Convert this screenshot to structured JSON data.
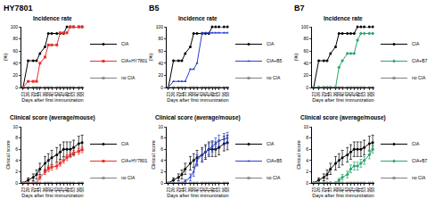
{
  "chart_data": [
    {
      "type": "line",
      "title": "Incidence rate",
      "annotations": [
        "HY7801"
      ],
      "x_label": "Days after first immunization",
      "y_label": "(%)",
      "x": [
        23,
        26,
        29,
        31,
        33,
        36,
        38,
        40,
        43,
        45,
        47,
        49,
        51,
        53,
        56,
        58
      ],
      "xlim": [
        22,
        59
      ],
      "xticks": [
        23,
        26,
        29,
        31,
        33,
        36,
        38,
        40,
        43,
        45,
        47,
        49,
        51,
        53,
        56,
        58
      ],
      "ylim": [
        0,
        100
      ],
      "yticks": [
        0,
        20,
        40,
        60,
        80,
        100
      ],
      "grid": false,
      "series": [
        {
          "name": "CIA",
          "color": "#000000",
          "marker": "circle",
          "values": [
            0,
            44,
            44,
            44,
            56,
            67,
            89,
            89,
            89,
            89,
            89,
            100,
            100,
            100,
            100,
            100
          ]
        },
        {
          "name": "CIA+HY7801",
          "color": "#e8302a",
          "marker": "square",
          "values": [
            0,
            10,
            10,
            10,
            40,
            50,
            70,
            70,
            70,
            90,
            90,
            90,
            100,
            100,
            100,
            100
          ]
        },
        {
          "name": "no CIA",
          "color": "#808080",
          "marker": "x",
          "values": [
            0,
            0,
            0,
            0,
            0,
            0,
            0,
            0,
            0,
            0,
            0,
            0,
            0,
            0,
            0,
            0
          ]
        }
      ]
    },
    {
      "type": "line",
      "title": "Clinical score (average/mouse)",
      "x_label": "Days after first immunization",
      "y_label": "Clinical score",
      "x": [
        23,
        26,
        29,
        31,
        33,
        36,
        38,
        40,
        43,
        45,
        47,
        49,
        51,
        53,
        56,
        58
      ],
      "xlim": [
        22,
        59
      ],
      "xticks": [
        23,
        26,
        29,
        31,
        33,
        36,
        38,
        40,
        43,
        45,
        47,
        49,
        51,
        53,
        56,
        58
      ],
      "ylim": [
        0,
        10
      ],
      "yticks": [
        0,
        2,
        4,
        6,
        8,
        10
      ],
      "grid": false,
      "series": [
        {
          "name": "CIA",
          "color": "#000000",
          "marker": "circle",
          "values": [
            0,
            0.5,
            1,
            1.5,
            2.5,
            3.5,
            4,
            4.5,
            5,
            5.5,
            6,
            6,
            6,
            6.3,
            7,
            7.2
          ],
          "errors": [
            0,
            0.4,
            0.6,
            0.8,
            1,
            1.2,
            1.2,
            1.3,
            1.3,
            1.3,
            1.3,
            1.3,
            1.3,
            1.3,
            1.3,
            1.3
          ]
        },
        {
          "name": "CIA+HY7801",
          "color": "#e8302a",
          "marker": "square",
          "values": [
            0,
            0,
            0,
            0,
            1,
            2,
            2.5,
            2.8,
            3,
            3.5,
            4,
            4.5,
            5,
            5.3,
            5.6,
            5.9
          ],
          "errors": [
            0,
            0,
            0,
            0,
            0.4,
            0.5,
            0.5,
            0.5,
            0.5,
            0.5,
            0.5,
            0.5,
            0.5,
            0.5,
            0.5,
            0.5
          ]
        },
        {
          "name": "no CIA",
          "color": "#808080",
          "marker": "x",
          "values": [
            0,
            0,
            0,
            0,
            0,
            0,
            0,
            0,
            0,
            0,
            0,
            0,
            0,
            0,
            0,
            0
          ],
          "errors": [
            0,
            0,
            0,
            0,
            0,
            0,
            0,
            0,
            0,
            0,
            0,
            0,
            0,
            0,
            0,
            0
          ]
        }
      ]
    },
    {
      "type": "line",
      "title": "Incidence rate",
      "annotations": [
        "B5"
      ],
      "x_label": "Days after first immunization",
      "y_label": "(%)",
      "x": [
        23,
        26,
        29,
        31,
        33,
        36,
        38,
        40,
        43,
        45,
        47,
        49,
        51,
        53,
        56,
        58
      ],
      "xlim": [
        22,
        59
      ],
      "xticks": [
        23,
        26,
        29,
        31,
        33,
        36,
        38,
        40,
        43,
        45,
        47,
        49,
        51,
        53,
        56,
        58
      ],
      "ylim": [
        0,
        100
      ],
      "yticks": [
        0,
        20,
        40,
        60,
        80,
        100
      ],
      "grid": false,
      "series": [
        {
          "name": "CIA",
          "color": "#000000",
          "marker": "circle",
          "values": [
            0,
            44,
            44,
            44,
            56,
            67,
            89,
            89,
            89,
            89,
            89,
            100,
            100,
            100,
            100,
            100
          ]
        },
        {
          "name": "CIA+B5",
          "color": "#2a3fd6",
          "marker": "triangle-up",
          "values": [
            0,
            10,
            10,
            10,
            10,
            30,
            30,
            40,
            90,
            90,
            90,
            90,
            90,
            90,
            90,
            90
          ]
        },
        {
          "name": "no CIA",
          "color": "#808080",
          "marker": "x",
          "values": [
            0,
            0,
            0,
            0,
            0,
            0,
            0,
            0,
            0,
            0,
            0,
            0,
            0,
            0,
            0,
            0
          ]
        }
      ]
    },
    {
      "type": "line",
      "title": "Clinical score (average/mouse)",
      "x_label": "Days after first immunization",
      "y_label": "Clinical score",
      "x": [
        23,
        26,
        29,
        31,
        33,
        36,
        38,
        40,
        43,
        45,
        47,
        49,
        51,
        53,
        56,
        58
      ],
      "xlim": [
        22,
        59
      ],
      "xticks": [
        23,
        26,
        29,
        31,
        33,
        36,
        38,
        40,
        43,
        45,
        47,
        49,
        51,
        53,
        56,
        58
      ],
      "ylim": [
        0,
        10
      ],
      "yticks": [
        0,
        2,
        4,
        6,
        8,
        10
      ],
      "grid": false,
      "series": [
        {
          "name": "CIA",
          "color": "#000000",
          "marker": "circle",
          "values": [
            0,
            0.5,
            1,
            1.5,
            2.5,
            3.5,
            4,
            4.5,
            5,
            5.5,
            6,
            6,
            6,
            6.3,
            7,
            7.2
          ],
          "errors": [
            0,
            0.4,
            0.6,
            0.8,
            1,
            1.2,
            1.2,
            1.3,
            1.3,
            1.3,
            1.3,
            1.3,
            1.3,
            1.3,
            1.3,
            1.3
          ]
        },
        {
          "name": "CIA+B5",
          "color": "#2a3fd6",
          "marker": "triangle-up",
          "values": [
            0,
            0,
            0,
            0,
            0.3,
            1,
            2,
            4,
            5,
            5.5,
            6,
            6.5,
            7,
            7.5,
            7.8,
            8
          ],
          "errors": [
            0,
            0,
            0,
            0,
            0.3,
            0.6,
            0.8,
            1,
            1,
            1,
            1,
            1,
            1,
            1,
            1,
            1
          ]
        },
        {
          "name": "no CIA",
          "color": "#808080",
          "marker": "x",
          "values": [
            0,
            0,
            0,
            0,
            0,
            0,
            0,
            0,
            0,
            0,
            0,
            0,
            0,
            0,
            0,
            0
          ],
          "errors": [
            0,
            0,
            0,
            0,
            0,
            0,
            0,
            0,
            0,
            0,
            0,
            0,
            0,
            0,
            0,
            0
          ]
        }
      ]
    },
    {
      "type": "line",
      "title": "Incidence rate",
      "annotations": [
        "B7"
      ],
      "x_label": "Days after first immunization",
      "y_label": "(%)",
      "x": [
        23,
        26,
        29,
        31,
        33,
        36,
        38,
        40,
        43,
        45,
        47,
        49,
        51,
        53,
        56,
        58
      ],
      "xlim": [
        22,
        59
      ],
      "xticks": [
        23,
        26,
        29,
        31,
        33,
        36,
        38,
        40,
        43,
        45,
        47,
        49,
        51,
        53,
        56,
        58
      ],
      "ylim": [
        0,
        100
      ],
      "yticks": [
        0,
        20,
        40,
        60,
        80,
        100
      ],
      "grid": false,
      "series": [
        {
          "name": "CIA",
          "color": "#000000",
          "marker": "circle",
          "values": [
            0,
            44,
            44,
            44,
            56,
            67,
            89,
            89,
            89,
            89,
            89,
            100,
            100,
            100,
            100,
            100
          ]
        },
        {
          "name": "CIA+B7",
          "color": "#2aa56b",
          "marker": "diamond",
          "values": [
            0,
            0,
            0,
            0,
            0,
            0,
            33,
            44,
            56,
            56,
            56,
            78,
            89,
            89,
            89,
            89
          ]
        },
        {
          "name": "no CIA",
          "color": "#808080",
          "marker": "x",
          "values": [
            0,
            0,
            0,
            0,
            0,
            0,
            0,
            0,
            0,
            0,
            0,
            0,
            0,
            0,
            0,
            0
          ]
        }
      ]
    },
    {
      "type": "line",
      "title": "Clinical score (average/mouse)",
      "x_label": "Days after first immunization",
      "y_label": "Clinical score",
      "x": [
        23,
        26,
        29,
        31,
        33,
        36,
        38,
        40,
        43,
        45,
        47,
        49,
        51,
        53,
        56,
        58
      ],
      "xlim": [
        22,
        59
      ],
      "xticks": [
        23,
        26,
        29,
        31,
        33,
        36,
        38,
        40,
        43,
        45,
        47,
        49,
        51,
        53,
        56,
        58
      ],
      "ylim": [
        0,
        10
      ],
      "yticks": [
        0,
        2,
        4,
        6,
        8,
        10
      ],
      "grid": false,
      "series": [
        {
          "name": "CIA",
          "color": "#000000",
          "marker": "circle",
          "values": [
            0,
            0.5,
            1,
            1.5,
            2.5,
            3.5,
            4,
            4.5,
            5,
            5.5,
            6,
            6,
            6,
            6.3,
            7,
            7.2
          ],
          "errors": [
            0,
            0.4,
            0.6,
            0.8,
            1,
            1.2,
            1.2,
            1.3,
            1.3,
            1.3,
            1.3,
            1.3,
            1.3,
            1.3,
            1.3,
            1.3
          ]
        },
        {
          "name": "CIA+B7",
          "color": "#2aa56b",
          "marker": "diamond",
          "values": [
            0,
            0,
            0,
            0,
            0,
            0,
            0.5,
            1,
            1.5,
            2.5,
            3,
            3,
            3.5,
            4,
            5,
            6
          ],
          "errors": [
            0,
            0,
            0,
            0,
            0,
            0,
            0.3,
            0.5,
            0.6,
            0.7,
            0.7,
            0.7,
            0.7,
            0.7,
            0.7,
            0.7
          ]
        },
        {
          "name": "no CIA",
          "color": "#808080",
          "marker": "x",
          "values": [
            0,
            0,
            0,
            0,
            0,
            0,
            0,
            0,
            0,
            0,
            0,
            0,
            0,
            0,
            0,
            0
          ],
          "errors": [
            0,
            0,
            0,
            0,
            0,
            0,
            0,
            0,
            0,
            0,
            0,
            0,
            0,
            0,
            0,
            0
          ]
        }
      ]
    }
  ]
}
